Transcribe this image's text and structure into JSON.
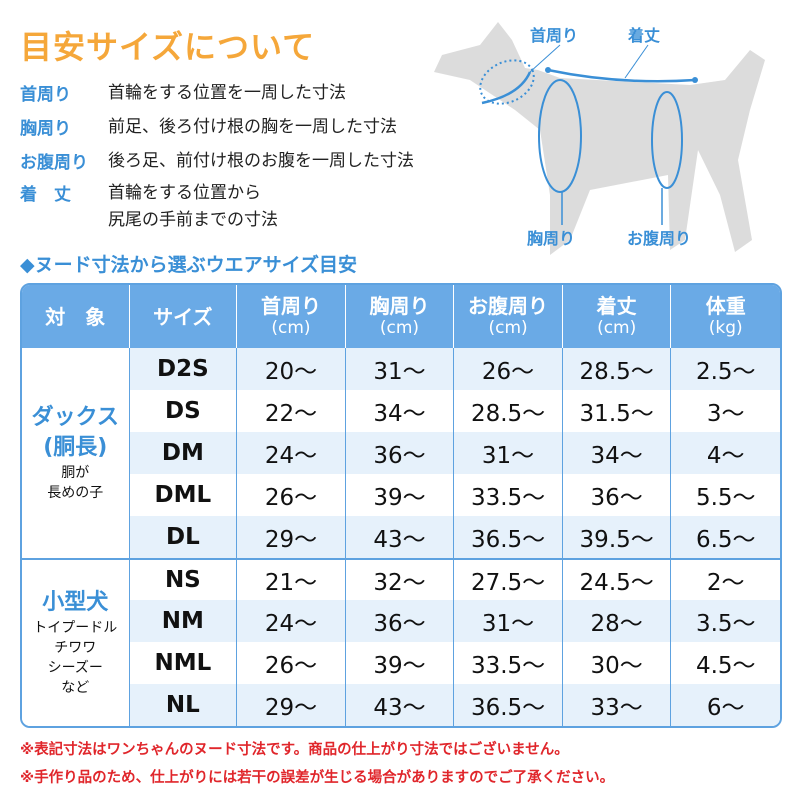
{
  "title": "目安サイズについて",
  "definitions": [
    {
      "term": "首周り",
      "desc": [
        "首輪をする位置を一周した寸法"
      ]
    },
    {
      "term": "胸周り",
      "desc": [
        "前足、後ろ付け根の胸を一周した寸法"
      ]
    },
    {
      "term": "お腹周り",
      "desc": [
        "後ろ足、前付け根のお腹を一周した寸法"
      ]
    },
    {
      "term": "着　丈",
      "desc": [
        "首輪をする位置から",
        "尻尾の手前までの寸法"
      ]
    }
  ],
  "diagram_labels": {
    "neck": "首周り",
    "length": "着丈",
    "chest": "胸周り",
    "belly": "お腹周り"
  },
  "subtitle": "◆ヌード寸法から選ぶウエアサイズ目安",
  "table": {
    "headers": [
      {
        "label": "対　象",
        "unit": ""
      },
      {
        "label": "サイズ",
        "unit": ""
      },
      {
        "label": "首周り",
        "unit": "(cm)"
      },
      {
        "label": "胸周り",
        "unit": "(cm)"
      },
      {
        "label": "お腹周り",
        "unit": "(cm)"
      },
      {
        "label": "着丈",
        "unit": "(cm)"
      },
      {
        "label": "体重",
        "unit": "(kg)"
      }
    ],
    "groups": [
      {
        "name": "ダックス",
        "name2": "(胴長)",
        "note": [
          "胴が",
          "長めの子"
        ],
        "rows": [
          [
            "D2S",
            "20～",
            "31～",
            "26～",
            "28.5～",
            "2.5～"
          ],
          [
            "DS",
            "22～",
            "34～",
            "28.5～",
            "31.5～",
            "3～"
          ],
          [
            "DM",
            "24～",
            "36～",
            "31～",
            "34～",
            "4～"
          ],
          [
            "DML",
            "26～",
            "39～",
            "33.5～",
            "36～",
            "5.5～"
          ],
          [
            "DL",
            "29～",
            "43～",
            "36.5～",
            "39.5～",
            "6.5～"
          ]
        ]
      },
      {
        "name": "小型犬",
        "name2": "",
        "note": [
          "トイプードル",
          "チワワ",
          "シーズー",
          "など"
        ],
        "rows": [
          [
            "NS",
            "21～",
            "32～",
            "27.5～",
            "24.5～",
            "2～"
          ],
          [
            "NM",
            "24～",
            "36～",
            "31～",
            "28～",
            "3.5～"
          ],
          [
            "NML",
            "26～",
            "39～",
            "33.5～",
            "30～",
            "4.5～"
          ],
          [
            "NL",
            "29～",
            "43～",
            "36.5～",
            "33～",
            "6～"
          ]
        ]
      }
    ]
  },
  "notes": [
    "※表記寸法はワンちゃんのヌード寸法です。商品の仕上がり寸法ではございません。",
    "※手作り品のため、仕上がりには若干の誤差が生じる場合がありますのでご了承ください。"
  ],
  "colors": {
    "accent": "#3a8fd6",
    "title": "#f5a73a",
    "header": "#6aaae6",
    "note": "#e0262b"
  }
}
